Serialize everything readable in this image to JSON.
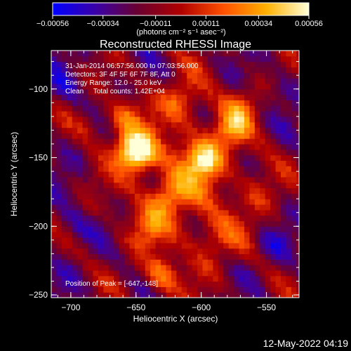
{
  "chart_data": {
    "type": "heatmap",
    "title": "Reconstructed RHESSI Image",
    "xlabel": "Heliocentric X (arcsec)",
    "ylabel": "Heliocentric Y (arcsec)",
    "xlim": [
      -715,
      -525
    ],
    "ylim": [
      -252,
      -72
    ],
    "x_ticks": [
      -700,
      -650,
      -600,
      -550
    ],
    "y_ticks": [
      -100,
      -150,
      -200,
      -250
    ],
    "x_tick_labels": [
      "−700",
      "−650",
      "−600",
      "−550"
    ],
    "y_tick_labels": [
      "−100",
      "−150",
      "−200",
      "−250"
    ],
    "colorbar": {
      "label": "(photons cm⁻² s⁻¹ asec⁻²)",
      "range": [
        -0.00056,
        0.00056
      ],
      "ticks": [
        -0.00056,
        -0.00034,
        -0.00011,
        0.00011,
        0.00034,
        0.00056
      ],
      "tick_labels": [
        "−0.00056",
        "−0.00034",
        "−0.00011",
        "0.00011",
        "0.00034",
        "0.00056"
      ],
      "colormap": [
        "#0000ff",
        "#3a00a8",
        "#6a0030",
        "#b00000",
        "#ff5000",
        "#ffb000",
        "#ffffd8"
      ]
    },
    "annotations": [
      "31-Jan-2014 06:57:56.000 to 07:03:56.000",
      "Detectors: 3F 4F 5F 6F 7F 8F, Att 0",
      "Energy Range: 12.0 - 25.0 keV",
      "Clean     Total counts: 1.42E+04"
    ],
    "peak_label": "Position of Peak = [-647,-148]",
    "sources": [
      {
        "x": -647,
        "y": -148,
        "amp": 0.00056
      },
      {
        "x": -655,
        "y": -142,
        "amp": 0.0004
      },
      {
        "x": -598,
        "y": -152,
        "amp": 0.00046
      },
      {
        "x": -578,
        "y": -130,
        "amp": 0.00034
      },
      {
        "x": -568,
        "y": -113,
        "amp": 0.00024
      },
      {
        "x": -632,
        "y": -236,
        "amp": 0.00038
      },
      {
        "x": -625,
        "y": -178,
        "amp": 0.0003
      },
      {
        "x": -660,
        "y": -120,
        "amp": 0.0003
      },
      {
        "x": -615,
        "y": -108,
        "amp": 0.00026
      },
      {
        "x": -685,
        "y": -125,
        "amp": 0.00018
      },
      {
        "x": -640,
        "y": -200,
        "amp": 0.00022
      },
      {
        "x": -590,
        "y": -210,
        "amp": 0.00018
      },
      {
        "x": -555,
        "y": -175,
        "amp": 0.00014
      },
      {
        "x": -700,
        "y": -200,
        "amp": -0.00016
      },
      {
        "x": -705,
        "y": -100,
        "amp": -0.00012
      },
      {
        "x": -540,
        "y": -100,
        "amp": -0.0001
      },
      {
        "x": -545,
        "y": -215,
        "amp": -0.00014
      }
    ]
  },
  "footer": {
    "timestamp": "12-May-2022 04:19"
  }
}
